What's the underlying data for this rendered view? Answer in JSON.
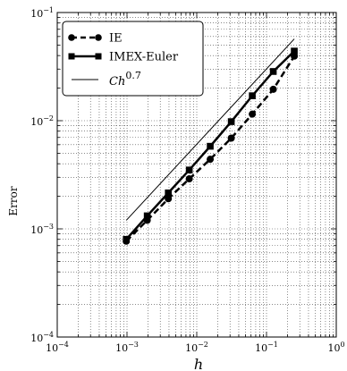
{
  "chart_data": {
    "type": "line",
    "title": "",
    "xlabel": "h",
    "ylabel": "Error",
    "xscale": "log",
    "yscale": "log",
    "xlim": [
      0.0001,
      1
    ],
    "ylim": [
      0.0001,
      0.1
    ],
    "xticks": [
      {
        "value": 0.0001,
        "base": "10",
        "exp": "−4"
      },
      {
        "value": 0.001,
        "base": "10",
        "exp": "−3"
      },
      {
        "value": 0.01,
        "base": "10",
        "exp": "−2"
      },
      {
        "value": 0.1,
        "base": "10",
        "exp": "−1"
      },
      {
        "value": 1,
        "base": "10",
        "exp": "0"
      }
    ],
    "yticks": [
      {
        "value": 0.0001,
        "base": "10",
        "exp": "−4"
      },
      {
        "value": 0.001,
        "base": "10",
        "exp": "−3"
      },
      {
        "value": 0.01,
        "base": "10",
        "exp": "−2"
      },
      {
        "value": 0.1,
        "base": "10",
        "exp": "−1"
      }
    ],
    "grid": true,
    "legend_position": "top-left",
    "series": [
      {
        "name": "IE",
        "style": "dashed",
        "marker": "circle",
        "color": "#000000",
        "x": [
          0.000977,
          0.00195,
          0.00391,
          0.00781,
          0.0156,
          0.03125,
          0.0625,
          0.125,
          0.25
        ],
        "y": [
          0.00077,
          0.0012,
          0.0019,
          0.0029,
          0.0044,
          0.0069,
          0.0115,
          0.0195,
          0.0395
        ]
      },
      {
        "name": "IMEX-Euler",
        "style": "solid",
        "marker": "square",
        "color": "#000000",
        "x": [
          0.000977,
          0.00195,
          0.00391,
          0.00781,
          0.0156,
          0.03125,
          0.0625,
          0.125,
          0.25
        ],
        "y": [
          0.0008,
          0.00132,
          0.00215,
          0.0035,
          0.0058,
          0.0098,
          0.017,
          0.0285,
          0.044
        ]
      },
      {
        "name_base": "Ch",
        "name_exp": "0.7",
        "style": "solid-thin",
        "marker": "none",
        "color": "#000000",
        "x": [
          0.000977,
          0.25
        ],
        "y": [
          0.0012,
          0.057
        ]
      }
    ]
  }
}
